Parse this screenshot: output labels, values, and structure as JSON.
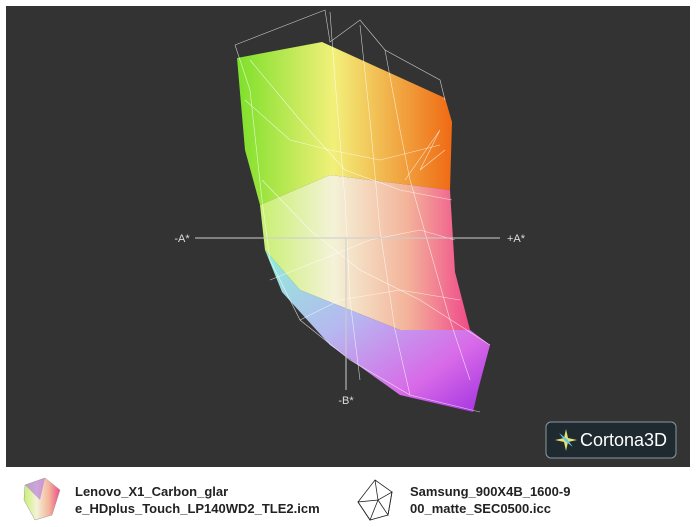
{
  "viewer": {
    "axes": {
      "minus_a": "-A*",
      "plus_a": "+A*",
      "minus_b": "-B*"
    },
    "logo": "Cortona3D"
  },
  "legend": [
    {
      "lines": [
        "Lenovo_X1_Carbon_glar",
        "e_HDplus_Touch_LP140WD2_TLE2.icm"
      ]
    },
    {
      "lines": [
        "Samsung_900X4B_1600-9",
        "00_matte_SEC0500.icc"
      ]
    }
  ]
}
